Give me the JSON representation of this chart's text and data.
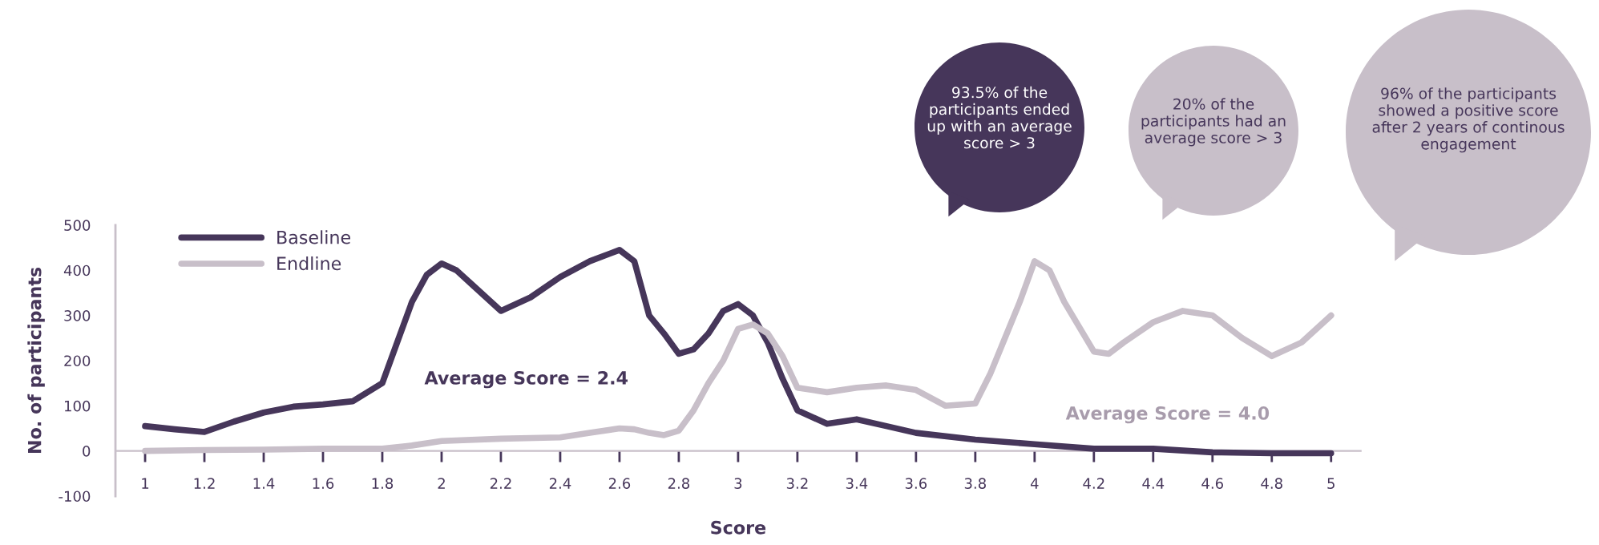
{
  "chart_data": {
    "type": "line",
    "xlabel": "Score",
    "ylabel": "No. of participants",
    "xlim": [
      0.9,
      5.1
    ],
    "xticks": [
      1,
      1.2,
      1.4,
      1.6,
      1.8,
      2,
      2.2,
      2.4,
      2.6,
      2.8,
      3,
      3.2,
      3.4,
      3.6,
      3.8,
      4,
      4.2,
      4.4,
      4.6,
      4.8,
      5
    ],
    "ylim": [
      -100,
      500
    ],
    "yticks": [
      -100,
      0,
      100,
      200,
      300,
      400,
      500
    ],
    "grid": false,
    "legend": "top left",
    "marker": "none",
    "line_style": "solid",
    "series": [
      {
        "name": "Baseline",
        "color": "#46365a",
        "x": [
          1,
          1.1,
          1.2,
          1.3,
          1.4,
          1.5,
          1.6,
          1.7,
          1.8,
          1.85,
          1.9,
          1.95,
          2,
          2.05,
          2.1,
          2.2,
          2.3,
          2.4,
          2.5,
          2.6,
          2.65,
          2.7,
          2.75,
          2.8,
          2.85,
          2.9,
          2.95,
          3,
          3.05,
          3.1,
          3.15,
          3.2,
          3.3,
          3.4,
          3.5,
          3.6,
          3.8,
          4,
          4.2,
          4.4,
          4.6,
          4.8,
          5
        ],
        "values": [
          55,
          48,
          42,
          65,
          85,
          98,
          103,
          110,
          150,
          240,
          330,
          390,
          415,
          400,
          370,
          310,
          340,
          385,
          420,
          445,
          420,
          300,
          260,
          215,
          225,
          260,
          310,
          325,
          300,
          240,
          160,
          90,
          60,
          70,
          55,
          40,
          25,
          15,
          5,
          5,
          -3,
          -5,
          -5
        ]
      },
      {
        "name": "Endline",
        "color": "#c8bfc9",
        "x": [
          1,
          1.2,
          1.4,
          1.6,
          1.8,
          1.9,
          2,
          2.2,
          2.4,
          2.5,
          2.6,
          2.65,
          2.7,
          2.75,
          2.8,
          2.85,
          2.9,
          2.95,
          3,
          3.05,
          3.1,
          3.15,
          3.2,
          3.3,
          3.4,
          3.5,
          3.6,
          3.7,
          3.8,
          3.85,
          3.9,
          3.95,
          4,
          4.05,
          4.1,
          4.2,
          4.25,
          4.3,
          4.4,
          4.5,
          4.6,
          4.7,
          4.8,
          4.9,
          5
        ],
        "values": [
          0,
          2,
          3,
          5,
          5,
          12,
          22,
          27,
          30,
          40,
          50,
          48,
          40,
          35,
          45,
          90,
          150,
          200,
          270,
          280,
          260,
          210,
          140,
          130,
          140,
          145,
          135,
          100,
          105,
          170,
          250,
          330,
          420,
          400,
          330,
          220,
          215,
          240,
          285,
          310,
          300,
          250,
          210,
          240,
          300
        ]
      }
    ],
    "annotations": [
      "Average Score = 2.4",
      "Average Score = 4.0",
      "93.5% of the participants ended up with an average score > 3",
      "20% of the participants had an average score > 3",
      "96% of the participants showed a positive score after 2 years of continous engagement"
    ]
  }
}
